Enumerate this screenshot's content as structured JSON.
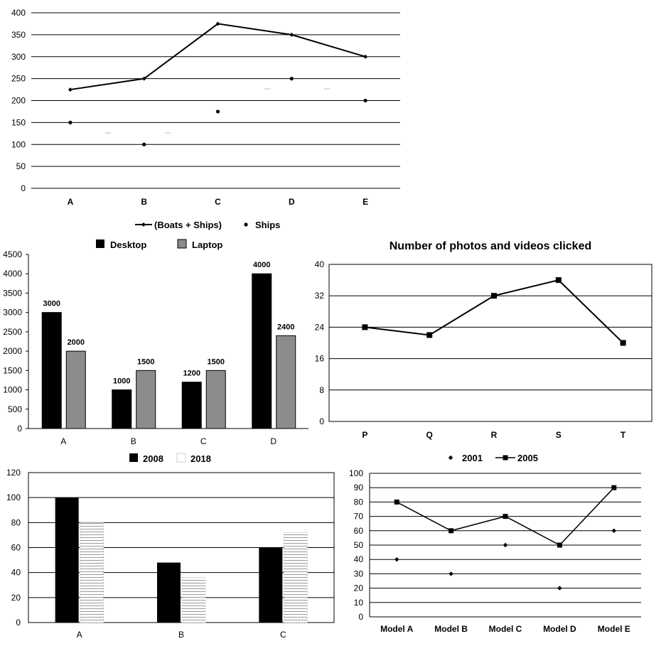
{
  "colors": {
    "dark": "#000000",
    "gray": "#8c8c8c",
    "grid": "#000000"
  },
  "chart_data": [
    {
      "type": "line",
      "categories": [
        "A",
        "B",
        "C",
        "D",
        "E"
      ],
      "ylim": [
        0,
        400
      ],
      "yticks": [
        0,
        50,
        100,
        150,
        200,
        250,
        300,
        350,
        400
      ],
      "series": [
        {
          "name": "(Boats + Ships)",
          "kind": "line",
          "marker": "diamond",
          "values": [
            225,
            250,
            375,
            350,
            300
          ]
        },
        {
          "name": "Ships",
          "kind": "scatter",
          "marker": "dot",
          "values": [
            150,
            100,
            175,
            250,
            200
          ]
        }
      ],
      "legend": "bottom",
      "grid": true
    },
    {
      "type": "bar",
      "categories": [
        "A",
        "B",
        "C",
        "D"
      ],
      "ylim": [
        0,
        4500
      ],
      "yticks": [
        0,
        500,
        1000,
        1500,
        2000,
        2500,
        3000,
        3500,
        4000,
        4500
      ],
      "series": [
        {
          "name": "Desktop",
          "color": "#000000",
          "values": [
            3000,
            1000,
            1200,
            4000
          ],
          "labels": [
            "3000",
            "1000",
            "1200",
            "4000"
          ]
        },
        {
          "name": "Laptop",
          "color": "#8c8c8c",
          "values": [
            2000,
            1500,
            1500,
            2400
          ],
          "labels": [
            "2000",
            "1500",
            "1500",
            "2400"
          ]
        }
      ],
      "legend": "top",
      "grid": false
    },
    {
      "type": "line",
      "title": "Number of photos and videos clicked",
      "categories": [
        "P",
        "Q",
        "R",
        "S",
        "T"
      ],
      "ylim": [
        0,
        40
      ],
      "yticks": [
        0,
        8,
        16,
        24,
        32,
        40
      ],
      "series": [
        {
          "name": "",
          "marker": "square",
          "values": [
            24,
            22,
            32,
            36,
            20
          ]
        }
      ],
      "grid": true
    },
    {
      "type": "bar",
      "categories": [
        "A",
        "B",
        "C"
      ],
      "ylim": [
        0,
        120
      ],
      "yticks": [
        0,
        20,
        40,
        60,
        80,
        100,
        120
      ],
      "series": [
        {
          "name": "2008",
          "color": "#000000",
          "values": [
            100,
            48,
            60
          ]
        },
        {
          "name": "2018",
          "pattern": "hlines",
          "values": [
            80,
            36,
            72
          ]
        }
      ],
      "legend": "top",
      "grid": true
    },
    {
      "type": "line",
      "categories": [
        "Model A",
        "Model B",
        "Model C",
        "Model D",
        "Model E"
      ],
      "ylim": [
        0,
        100
      ],
      "yticks": [
        0,
        10,
        20,
        30,
        40,
        50,
        60,
        70,
        80,
        90,
        100
      ],
      "series": [
        {
          "name": "2001",
          "kind": "scatter",
          "marker": "diamond",
          "values": [
            40,
            30,
            50,
            20,
            60
          ]
        },
        {
          "name": "2005",
          "kind": "line",
          "marker": "square",
          "values": [
            80,
            60,
            70,
            50,
            90
          ]
        }
      ],
      "legend": "top",
      "grid": true
    }
  ]
}
